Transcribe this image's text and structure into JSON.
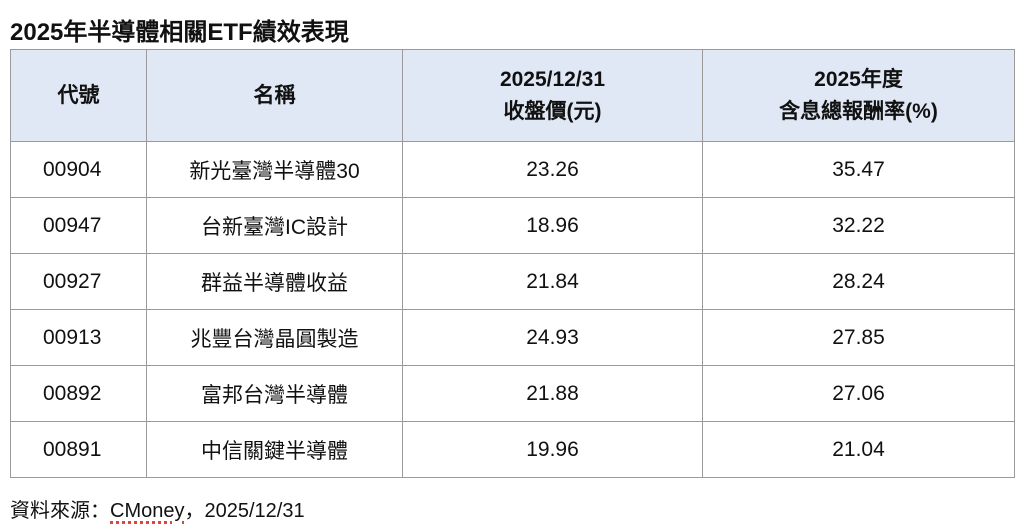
{
  "title": "2025年半導體相關ETF績效表現",
  "table": {
    "headers": [
      {
        "line1": "代號",
        "line2": ""
      },
      {
        "line1": "名稱",
        "line2": ""
      },
      {
        "line1": "2025/12/31",
        "line2": "收盤價(元)"
      },
      {
        "line1": "2025年度",
        "line2": "含息總報酬率(%)"
      }
    ],
    "header_bg": "#dfe8f4",
    "rows": [
      [
        "00904",
        "新光臺灣半導體30",
        "23.26",
        "35.47"
      ],
      [
        "00947",
        "台新臺灣IC設計",
        "18.96",
        "32.22"
      ],
      [
        "00927",
        "群益半導體收益",
        "21.84",
        "28.24"
      ],
      [
        "00913",
        "兆豐台灣晶圓製造",
        "24.93",
        "27.85"
      ],
      [
        "00892",
        "富邦台灣半導體",
        "21.88",
        "27.06"
      ],
      [
        "00891",
        "中信關鍵半導體",
        "19.96",
        "21.04"
      ]
    ]
  },
  "source": {
    "prefix": "資料來源：",
    "name": "CMoney",
    "suffix": "，2025/12/31"
  }
}
